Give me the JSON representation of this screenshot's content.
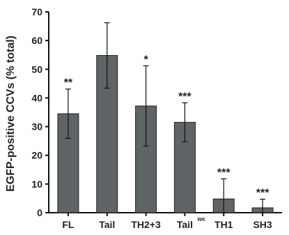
{
  "chart_data": {
    "type": "bar",
    "categories": [
      {
        "label": "FL",
        "superscript": ""
      },
      {
        "label": "Tail",
        "superscript": ""
      },
      {
        "label": "TH2+3",
        "superscript": ""
      },
      {
        "label": "Tail",
        "superscript": "WK"
      },
      {
        "label": "TH1",
        "superscript": ""
      },
      {
        "label": "SH3",
        "superscript": ""
      }
    ],
    "values": [
      34.5,
      54.8,
      37.2,
      31.5,
      4.8,
      1.7
    ],
    "errors": [
      8.6,
      11.4,
      14.0,
      6.8,
      7.0,
      3.0
    ],
    "significance": [
      "**",
      "",
      "*",
      "***",
      "***",
      "***"
    ],
    "ylabel": "EGFP-positive CCVs (% total)",
    "xlabel": "",
    "ylim": [
      0,
      70
    ],
    "yticks": [
      0,
      10,
      20,
      30,
      40,
      50,
      60,
      70
    ],
    "bar_color": "#5f6467",
    "grid": false
  }
}
